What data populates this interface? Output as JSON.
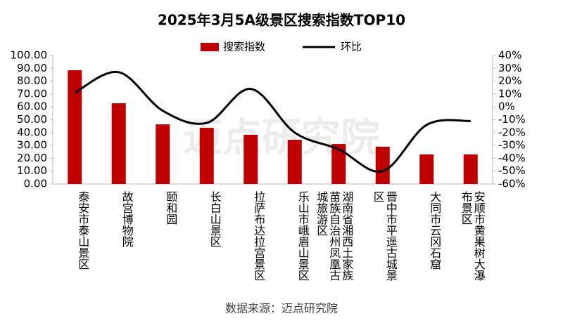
{
  "chart_data": {
    "type": "bar_line",
    "title": "2025年3月5A级景区搜索指数TOP10",
    "source": "数据来源：迈点研究院",
    "watermark": "迈点研究院",
    "categories": [
      "泰安市泰山景区",
      "故宫博物院",
      "颐和园",
      "长白山景区",
      "拉萨布达拉宫景区",
      "乐山市峨眉山景区",
      "湖南省湘西土家族苗族自治州凤凰古城旅游区",
      "晋中市平遥古城景区",
      "大同市云冈石窟",
      "安顺市黄果树大瀑布景区"
    ],
    "series": [
      {
        "name": "搜索指数",
        "type": "bar",
        "color": "#c00000",
        "values": [
          88.5,
          62.8,
          46.4,
          43.7,
          38.3,
          34.4,
          31.1,
          29,
          23,
          23
        ]
      },
      {
        "name": "环比",
        "type": "line",
        "axis": "y2",
        "color": "#000000",
        "values": [
          11,
          27,
          -3,
          -12.5,
          14,
          -20,
          -33,
          -50,
          -14,
          -11
        ]
      }
    ],
    "ylim": [
      0,
      100
    ],
    "yticks": [
      {
        "value": 0,
        "label": "0.00"
      },
      {
        "value": 10,
        "label": "10.00"
      },
      {
        "value": 20,
        "label": "20.00"
      },
      {
        "value": 30,
        "label": "30.00"
      },
      {
        "value": 40,
        "label": "40.00"
      },
      {
        "value": 50,
        "label": "50.00"
      },
      {
        "value": 60,
        "label": "60.00"
      },
      {
        "value": 70,
        "label": "70.00"
      },
      {
        "value": 80,
        "label": "80.00"
      },
      {
        "value": 90,
        "label": "90.00"
      },
      {
        "value": 100,
        "label": "100.00"
      }
    ],
    "y2lim": [
      -60,
      40
    ],
    "y2ticks": [
      {
        "value": -60,
        "label": "-60%"
      },
      {
        "value": -50,
        "label": "-50%"
      },
      {
        "value": -40,
        "label": "-40%"
      },
      {
        "value": -30,
        "label": "-30%"
      },
      {
        "value": -20,
        "label": "-20%"
      },
      {
        "value": -10,
        "label": "-10%"
      },
      {
        "value": 0,
        "label": "0%"
      },
      {
        "value": 10,
        "label": "10%"
      },
      {
        "value": 20,
        "label": "20%"
      },
      {
        "value": 30,
        "label": "30%"
      },
      {
        "value": 40,
        "label": "40%"
      }
    ],
    "grid": false
  }
}
